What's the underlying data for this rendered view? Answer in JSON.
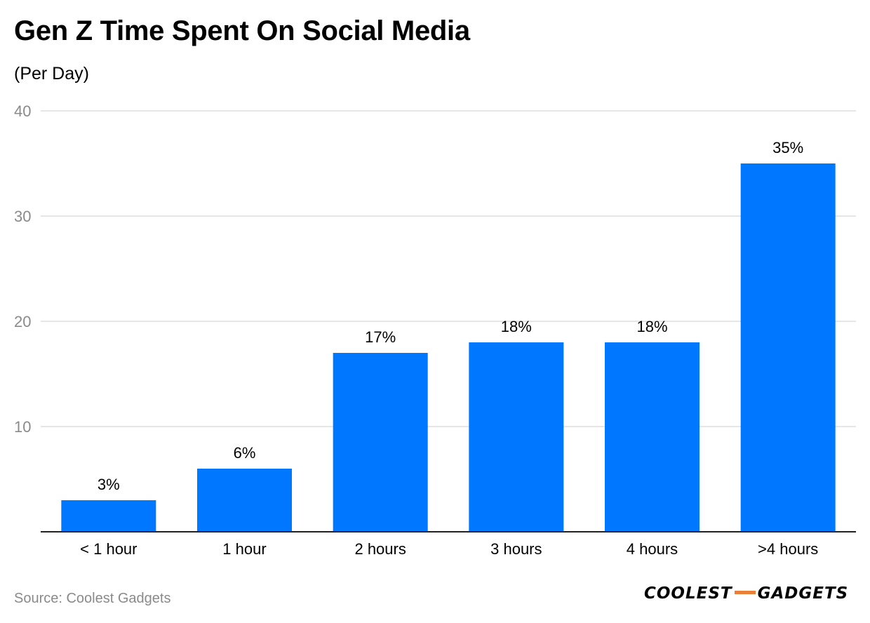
{
  "title": "Gen Z Time Spent On Social Media",
  "subtitle": "(Per Day)",
  "source": "Source: Coolest Gadgets",
  "brand": {
    "left": "COOLEST",
    "right": "GADGETS",
    "logo_icon": "coolest-gadgets-logo-icon",
    "dash_color": "#e8803a"
  },
  "chart_data": {
    "type": "bar",
    "categories": [
      "< 1 hour",
      "1 hour",
      "2 hours",
      "3 hours",
      "4 hours",
      ">4 hours"
    ],
    "values": [
      3,
      6,
      17,
      18,
      18,
      35
    ],
    "data_labels": [
      "3%",
      "6%",
      "17%",
      "18%",
      "18%",
      "35%"
    ],
    "ylim": [
      0,
      40
    ],
    "yticks": [
      10,
      20,
      30,
      40
    ],
    "xlabel": "",
    "ylabel": "",
    "grid": true,
    "legend": "none",
    "bar_color": "#0077ff"
  }
}
